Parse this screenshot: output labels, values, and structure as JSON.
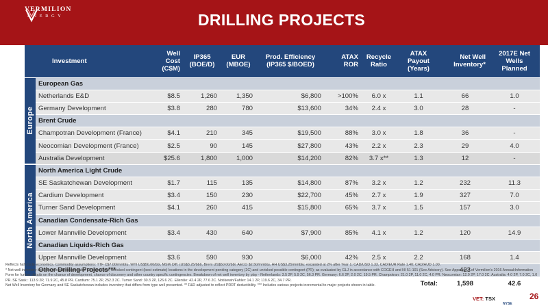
{
  "brand": {
    "name": "VERMILION",
    "sub": "ENERGY"
  },
  "title": "DRILLING PROJECTS",
  "table": {
    "headers": [
      "Investment",
      "Well Cost (C$M)",
      "IP365 (BOE/D)",
      "EUR (MBOE)",
      "Prod. Efficiency (IP365 $/BOED)",
      "ATAX ROR",
      "Recycle Ratio",
      "ATAX Payout (Years)",
      "Net Well Inventory*",
      "2017E Net Wells Planned"
    ],
    "regions": {
      "europe": "Europe",
      "north_america": "North America"
    },
    "groups": {
      "european_gas": "European Gas",
      "brent_crude": "Brent Crude",
      "na_light_crude": "North America Light Crude",
      "cdn_condensate": "Canadian Condensate-Rich Gas",
      "cdn_liquids": "Canadian Liquids-Rich Gas"
    },
    "rows": {
      "netherlands": [
        "Netherlands E&D",
        "$8.5",
        "1,260",
        "1,350",
        "$6,800",
        ">100%",
        "6.0 x",
        "1.1",
        "66",
        "1.0"
      ],
      "germany": [
        "Germany Development",
        "$3.8",
        "280",
        "780",
        "$13,600",
        "34%",
        "2.4 x",
        "3.0",
        "28",
        "-"
      ],
      "champotran": [
        "Champotran Development (France)",
        "$4.1",
        "210",
        "345",
        "$19,500",
        "88%",
        "3.0 x",
        "1.8",
        "36",
        "-"
      ],
      "neocomian": [
        "Neocomian Development (France)",
        "$2.5",
        "90",
        "145",
        "$27,800",
        "43%",
        "2.2 x",
        "2.3",
        "29",
        "4.0"
      ],
      "australia": [
        "Australia Development",
        "$25.6",
        "1,800",
        "1,000",
        "$14,200",
        "82%",
        "3.7 x**",
        "1.3",
        "12",
        "-"
      ],
      "se_sask": [
        "SE Saskatchewan Development",
        "$1.7",
        "115",
        "135",
        "$14,800",
        "87%",
        "3.2 x",
        "1.2",
        "232",
        "11.3"
      ],
      "cardium": [
        "Cardium Development",
        "$3.4",
        "150",
        "230",
        "$22,700",
        "45%",
        "2.7 x",
        "1.9",
        "327",
        "7.0"
      ],
      "turner": [
        "Turner Sand Development",
        "$4.1",
        "260",
        "415",
        "$15,800",
        "65%",
        "3.7 x",
        "1.5",
        "157",
        "3.0"
      ],
      "lower_mannville": [
        "Lower Mannville Development",
        "$3.4",
        "430",
        "640",
        "$7,900",
        "85%",
        "4.1 x",
        "1.2",
        "120",
        "14.9"
      ],
      "upper_mannville": [
        "Upper Mannville Development",
        "$3.6",
        "590",
        "930",
        "$6,000",
        "42%",
        "2.5 x",
        "2.2",
        "168",
        "1.4"
      ],
      "other": [
        "Other Drilling Projects***",
        "",
        "",
        "",
        "",
        "",
        "",
        "",
        "423",
        "-"
      ]
    },
    "total": {
      "label": "Total:",
      "inventory": "1,598",
      "wells": "42.6"
    }
  },
  "footnotes": [
    "Reflects half-cycle economics. Commodity assumptions: TTF C$7.00/mmbtu, WTI US$50.00/bbl, MSW Diff. (US$3.25/bbl), Brent US$50.00/bbl, AECO $2.50/mmbtu, HH US$3.25/mmbtu; escalated at 2% after Year 1; CAD/USD 1.33, CAD/EUR Rate 1.40; CAD/AUD 1.00.",
    "* Net well inventory includes proved plus probable (2P) locations, unrisked contingent (best estimate) locations in the development pending category (2C) and unrisked possible contingent (PR); as evaluated by GLJ in accordance with COGEH and NI 51-101 (See Advisory). See Appendix A of Vermilion's 2016 Annual Information Form for further details on the chance of development, chance of discovery and other country specific contingencies. Breakdown of net well inventory by play - Netherlands: 3.5 2P, 5.9 2C, 56.3 PR. Germany: 6.6 2P, 2.0 2C, 19.5 PR. Champotran: 21.0 2P, 11.0 2C, 4.0 PR. Neocomian: 12.0 2P, 17.0 2C. Australia: 4.0 2P, 7.0 2C, 1.0 PR. SE Sask.: 113.9 2P, 71.9 2C, 45.8 PR. Cardium: 75.1 2P, 252.3 2C. Turner Sand: 30.3 2P, 126.6 2C. Ellerslie: 42.4 2P, 77.6 2C. Notikewin/Fahler: 14.1 2P, 119.6 2C, 34.7 PR.",
    "Net Well Inventory for Germany and SE Saskatchewan includes inventory that differs from type well presented.  ** F&D adjusted to reflect PRRT deductibility.  *** Includes various projects incremental to major projects shown in table."
  ],
  "footer": {
    "vet": "VET:",
    "tsx": "TSX",
    "nyse": "NYSE",
    "page": "26"
  },
  "colors": {
    "brand_red": "#a51417",
    "header_navy": "#23477c",
    "group_blue": "#c9d0db",
    "row_gray": "#e8e8e8"
  }
}
